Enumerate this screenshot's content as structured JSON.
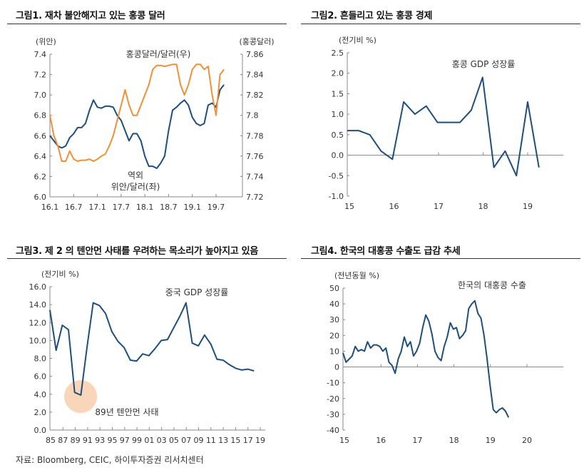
{
  "source": "자료: Bloomberg, CEIC, 하이투자증권 리서치센터",
  "colors": {
    "navy": "#1f4e79",
    "orange": "#f0913a",
    "highlight": "#f9d6ba",
    "axis": "#888888"
  },
  "chart_data": [
    {
      "type": "line",
      "title": "그림1. 재차 불안해지고 있는 홍콩 달러",
      "ylabel": "(위안)",
      "y2label": "(홍콩달러)",
      "ylim": [
        6.0,
        7.4
      ],
      "y2lim": [
        7.72,
        7.86
      ],
      "yticks": [
        "6.0",
        "6.2",
        "6.4",
        "6.6",
        "6.8",
        "7.0",
        "7.2",
        "7.4"
      ],
      "y2ticks": [
        "7.72",
        "7.74",
        "7.76",
        "7.78",
        "7.8",
        "7.82",
        "7.84",
        "7.86"
      ],
      "xticks": [
        "16.1",
        "16.7",
        "17.1",
        "17.7",
        "18.1",
        "18.7",
        "19.1",
        "19.7"
      ],
      "series": [
        {
          "name": "역외 위안/달러(좌)",
          "name_line1": "역외",
          "name_line2": "위안/달러(좌)",
          "axis": "left",
          "color": "#1f4e79",
          "values": [
            6.6,
            6.55,
            6.5,
            6.48,
            6.5,
            6.58,
            6.62,
            6.68,
            6.68,
            6.72,
            6.85,
            6.95,
            6.88,
            6.87,
            6.89,
            6.89,
            6.88,
            6.8,
            6.75,
            6.65,
            6.55,
            6.62,
            6.62,
            6.55,
            6.4,
            6.3,
            6.3,
            6.28,
            6.33,
            6.4,
            6.65,
            6.85,
            6.88,
            6.92,
            6.95,
            6.9,
            6.78,
            6.72,
            6.7,
            6.72,
            6.9,
            6.92,
            6.88,
            7.05,
            7.1
          ]
        },
        {
          "name": "홍콩달러/달러(우)",
          "axis": "right",
          "color": "#f0913a",
          "values": [
            7.8,
            7.78,
            7.77,
            7.755,
            7.755,
            7.765,
            7.757,
            7.755,
            7.756,
            7.756,
            7.757,
            7.755,
            7.757,
            7.76,
            7.762,
            7.77,
            7.78,
            7.795,
            7.81,
            7.825,
            7.81,
            7.8,
            7.8,
            7.81,
            7.82,
            7.83,
            7.845,
            7.849,
            7.849,
            7.848,
            7.849,
            7.85,
            7.85,
            7.83,
            7.82,
            7.83,
            7.845,
            7.85,
            7.85,
            7.845,
            7.848,
            7.82,
            7.8,
            7.84,
            7.845
          ]
        }
      ]
    },
    {
      "type": "line",
      "title": "그림2. 흔들리고 있는 홍콩 경제",
      "ylabel": "(전기비 %)",
      "ylim": [
        -1.0,
        2.5
      ],
      "yticks": [
        "-1.0",
        "-0.5",
        "0.0",
        "0.5",
        "1.0",
        "1.5",
        "2.0",
        "2.5"
      ],
      "xticks": [
        "15",
        "16",
        "17",
        "18",
        "19"
      ],
      "series": [
        {
          "name": "홍콩 GDP 성장률",
          "color": "#1f4e79",
          "values": [
            0.6,
            0.6,
            0.5,
            0.1,
            -0.1,
            1.3,
            1.0,
            1.2,
            0.8,
            0.8,
            0.8,
            1.1,
            1.9,
            -0.3,
            0.1,
            -0.5,
            1.3,
            -0.3
          ]
        }
      ]
    },
    {
      "type": "line",
      "title": "그림3. 제 2 의 텐안먼 사태를 우려하는 목소리가 높아지고 있음",
      "ylabel": "(전기비 %)",
      "ylim": [
        0,
        16
      ],
      "yticks": [
        "0.0",
        "2.0",
        "4.0",
        "6.0",
        "8.0",
        "10.0",
        "12.0",
        "14.0",
        "16.0"
      ],
      "xticks": [
        "85",
        "87",
        "89",
        "91",
        "93",
        "95",
        "97",
        "99",
        "01",
        "03",
        "05",
        "07",
        "09",
        "11",
        "13",
        "15",
        "17",
        "19"
      ],
      "annotation": "89년 텐안먼 사태",
      "series": [
        {
          "name": "중국 GDP 성장률",
          "color": "#1f4e79",
          "values": [
            13.4,
            8.9,
            11.7,
            11.2,
            4.2,
            3.9,
            9.3,
            14.2,
            13.9,
            13.0,
            11.0,
            9.9,
            9.2,
            7.8,
            7.7,
            8.5,
            8.3,
            9.1,
            10.0,
            10.1,
            11.4,
            12.7,
            14.2,
            9.7,
            9.4,
            10.6,
            9.6,
            7.9,
            7.8,
            7.3,
            6.9,
            6.7,
            6.8,
            6.6
          ]
        }
      ]
    },
    {
      "type": "line",
      "title": "그림4. 한국의 대홍콩 수출도 급감 추세",
      "ylabel": "(전년동월 %)",
      "ylim": [
        -40,
        50
      ],
      "yticks": [
        "-40",
        "-30",
        "-20",
        "-10",
        "0",
        "10",
        "20",
        "30",
        "40",
        "50"
      ],
      "xticks": [
        "15",
        "16",
        "17",
        "18",
        "19",
        "20"
      ],
      "series": [
        {
          "name": "한국의 대홍콩 수출",
          "color": "#1f4e79",
          "values": [
            9,
            3,
            5,
            7,
            13,
            10,
            11,
            10,
            16,
            12,
            14,
            14,
            13,
            10,
            12,
            3,
            1,
            -4,
            5,
            10,
            19,
            13,
            16,
            7,
            10,
            15,
            25,
            33,
            29,
            21,
            10,
            6,
            4,
            13,
            19,
            28,
            24,
            25,
            18,
            20,
            23,
            37,
            40,
            42,
            34,
            31,
            20,
            5,
            -12,
            -27,
            -29,
            -27,
            -26,
            -28,
            -32
          ]
        }
      ]
    }
  ]
}
